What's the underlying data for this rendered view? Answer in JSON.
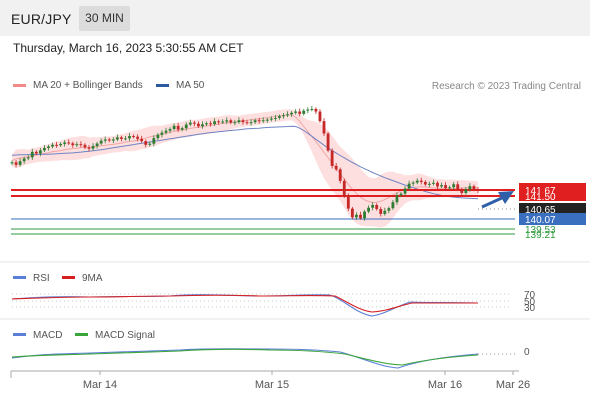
{
  "header": {
    "symbol": "EUR/JPY",
    "timeframe": "30 MIN"
  },
  "datetime": "Thursday, March 16, 2023 5:30:55 AM CET",
  "legend": {
    "ma_bands": {
      "label": "MA 20 + Bollinger Bands",
      "color": "#f28a8a"
    },
    "ma50": {
      "label": "MA 50",
      "color": "#2c5aa0"
    },
    "credit": "Research © 2023 Trading Central"
  },
  "colors": {
    "up": "#2e7d32",
    "down": "#c62828",
    "band": "#fdd9d9",
    "ma20": "#f3a6a6",
    "ma50": "#6f84c4",
    "resistance": "#e02020",
    "support": "#3a6fbf",
    "support_green": "#2e9a3e",
    "arrow": "#2f5fa8"
  },
  "chart_data": [
    {
      "type": "candlestick",
      "panel": "price",
      "x_labels": [
        "Mar 14",
        "Mar 15",
        "Mar 16",
        "Mar 26"
      ],
      "ylim": [
        138.9,
        143.4
      ],
      "price_levels": [
        {
          "value": 141.67,
          "label": "141.67",
          "color": "#e02020",
          "kind": "resistance"
        },
        {
          "value": 141.5,
          "label": "141.50",
          "color": "#e02020",
          "kind": "resistance"
        },
        {
          "value": 140.65,
          "label": "140.65",
          "color": "#222222",
          "kind": "last"
        },
        {
          "value": 140.07,
          "label": "140.07",
          "color": "#3a6fbf",
          "kind": "support"
        },
        {
          "value": 139.53,
          "label": "139.53",
          "color": "#2e9a3e",
          "kind": "support"
        },
        {
          "value": 139.21,
          "label": "139.21",
          "color": "#2e9a3e",
          "kind": "support"
        }
      ],
      "close": [
        141.98,
        141.86,
        142.03,
        142.16,
        142.21,
        142.47,
        142.39,
        142.54,
        142.65,
        142.72,
        142.8,
        142.78,
        142.84,
        142.91,
        142.87,
        142.78,
        142.83,
        142.8,
        142.68,
        142.62,
        142.74,
        142.86,
        142.99,
        143.05,
        143.0,
        143.05,
        143.15,
        143.08,
        143.1,
        143.21,
        143.18,
        143.08,
        142.97,
        142.8,
        142.85,
        143.11,
        143.27,
        143.37,
        143.46,
        143.54,
        143.69,
        143.51,
        143.58,
        143.75,
        143.84,
        143.79,
        143.67,
        143.76,
        143.81,
        143.77,
        143.9,
        143.86,
        143.89,
        143.95,
        143.84,
        143.86,
        143.95,
        143.86,
        143.82,
        143.86,
        143.95,
        143.91,
        143.95,
        143.98,
        144.03,
        144.06,
        144.14,
        144.18,
        144.23,
        144.3,
        144.36,
        144.25,
        144.4,
        144.45,
        144.48,
        144.36,
        143.91,
        143.33,
        142.53,
        141.81,
        141.65,
        141.11,
        140.39,
        139.81,
        139.4,
        139.52,
        139.36,
        139.67,
        139.85,
        139.98,
        139.79,
        139.56,
        139.71,
        139.83,
        140.11,
        140.43,
        140.51,
        140.75,
        140.98,
        141.03,
        141.12,
        141.06,
        140.94,
        140.97,
        141.02,
        140.85,
        140.91,
        140.77,
        140.81,
        140.95,
        140.72,
        140.54,
        140.72,
        140.86,
        140.71,
        140.65
      ],
      "ma20": [
        142.06,
        142.14,
        142.18,
        142.22,
        142.23,
        142.29,
        142.32,
        142.36,
        142.39,
        142.43,
        142.48,
        142.5,
        142.53,
        142.57,
        142.6,
        142.62,
        142.64,
        142.67,
        142.68,
        142.66,
        142.71,
        142.72,
        142.76,
        142.77,
        142.8,
        142.82,
        142.85,
        142.88,
        142.93,
        142.95,
        142.98,
        143.02,
        143.07,
        143.11,
        143.17,
        143.21,
        143.25,
        143.29,
        143.34,
        143.39,
        143.43,
        143.47,
        143.51,
        143.54,
        143.57,
        143.6,
        143.62,
        143.65,
        143.68,
        143.71,
        143.74,
        143.77,
        143.8,
        143.83,
        143.85,
        143.87,
        143.89,
        143.92,
        143.95,
        143.97,
        144.0,
        144.02,
        144.05,
        144.07,
        144.1,
        144.13,
        144.16,
        144.18,
        144.2,
        144.21,
        144.1,
        143.9,
        143.66,
        143.42,
        143.19,
        142.96,
        142.7,
        142.45,
        142.2,
        141.95,
        141.69,
        141.44,
        141.19,
        140.95,
        140.71,
        140.52,
        140.35,
        140.22,
        140.14,
        140.1,
        140.1,
        140.15,
        140.23,
        140.33,
        140.44,
        140.55,
        140.64,
        140.71,
        140.76,
        140.8,
        140.82,
        140.83,
        140.82,
        140.8,
        140.78,
        140.77,
        140.76,
        140.75,
        140.75,
        140.75,
        140.76,
        140.77,
        140.78,
        140.78,
        140.78,
        140.77
      ],
      "ma50": [
        142.31,
        142.32,
        142.33,
        142.33,
        142.34,
        142.34,
        142.35,
        142.35,
        142.36,
        142.36,
        142.37,
        142.38,
        142.39,
        142.4,
        142.41,
        142.42,
        142.44,
        142.46,
        142.48,
        142.5,
        142.52,
        142.54,
        142.57,
        142.6,
        142.63,
        142.66,
        142.69,
        142.72,
        142.75,
        142.78,
        142.81,
        142.84,
        142.87,
        142.9,
        142.93,
        142.96,
        142.99,
        143.02,
        143.05,
        143.08,
        143.11,
        143.14,
        143.17,
        143.2,
        143.23,
        143.26,
        143.29,
        143.32,
        143.35,
        143.37,
        143.39,
        143.41,
        143.43,
        143.45,
        143.47,
        143.49,
        143.51,
        143.53,
        143.55,
        143.56,
        143.57,
        143.58,
        143.6,
        143.61,
        143.62,
        143.63,
        143.64,
        143.65,
        143.66,
        143.67,
        143.66,
        143.58,
        143.47,
        143.34,
        143.2,
        143.06,
        142.92,
        142.78,
        142.65,
        142.53,
        142.41,
        142.3,
        142.19,
        142.08,
        141.97,
        141.87,
        141.77,
        141.68,
        141.59,
        141.5,
        141.42,
        141.34,
        141.26,
        141.19,
        141.12,
        141.05,
        140.98,
        140.91,
        140.85,
        140.79,
        140.73,
        140.67,
        140.61,
        140.56,
        140.51,
        140.47,
        140.43,
        140.4,
        140.37,
        140.35,
        140.33,
        140.31,
        140.3,
        140.29,
        140.28,
        140.28
      ]
    },
    {
      "type": "line",
      "panel": "rsi",
      "series": [
        {
          "name": "RSI",
          "color": "#5b7fd6"
        },
        {
          "name": "9MA",
          "color": "#d62020"
        }
      ],
      "levels": [
        70,
        50,
        30
      ],
      "ylim": [
        20,
        80
      ]
    },
    {
      "type": "line",
      "panel": "macd",
      "series": [
        {
          "name": "MACD",
          "color": "#5b7fd6"
        },
        {
          "name": "MACD Signal",
          "color": "#3aa53a"
        }
      ],
      "levels": [
        0
      ],
      "level_labels": [
        "0"
      ]
    }
  ],
  "rsi_labels": [
    "70",
    "50",
    "30"
  ],
  "macd_zero_label": "0"
}
